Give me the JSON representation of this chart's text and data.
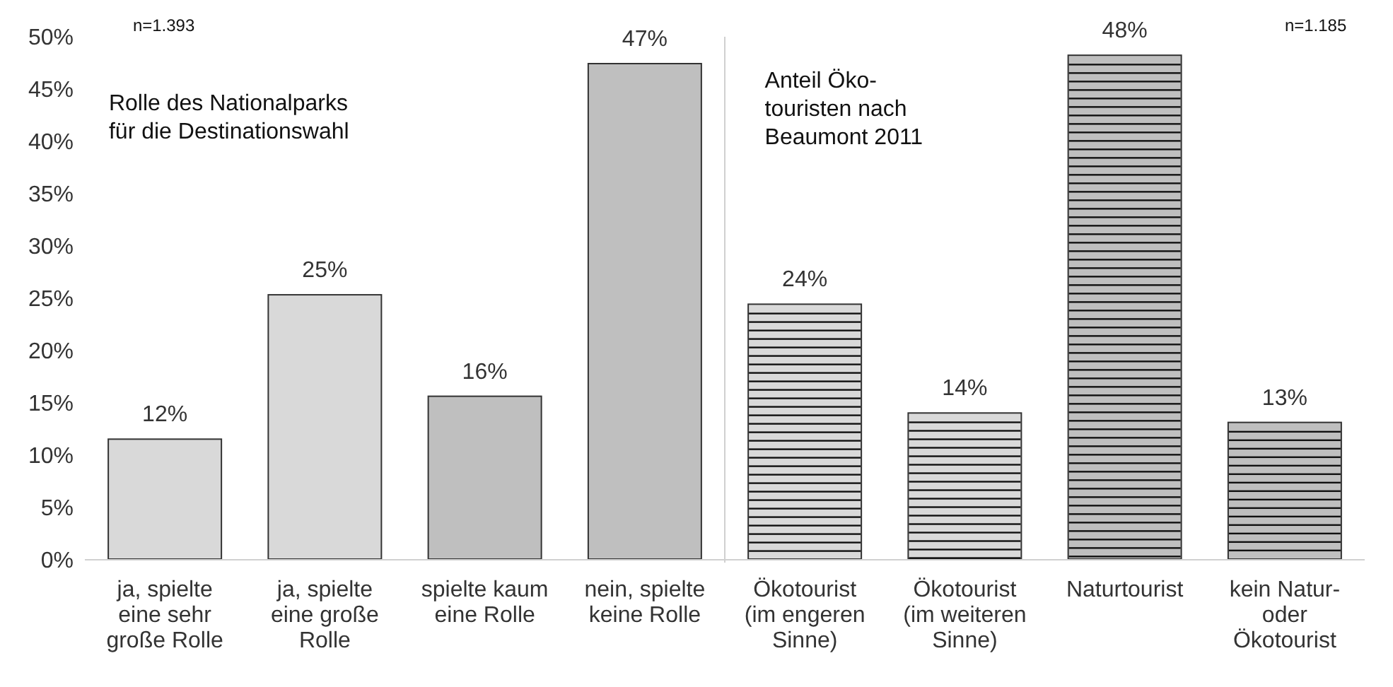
{
  "chart_data": {
    "type": "bar",
    "categories": [
      "ja, spielte\neine sehr\ngroße Rolle",
      "ja, spielte\neine große\nRolle",
      "spielte kaum\neine Rolle",
      "nein, spielte\nkeine Rolle",
      "Ökotourist\n(im engeren\nSinne)",
      "Ökotourist\n(im weiteren\nSinne)",
      "Naturtourist",
      "kein Natur-\noder\nÖkotourist"
    ],
    "series": [
      {
        "values": [
          11.6,
          25.4,
          15.7,
          47.5,
          null,
          null,
          null,
          null
        ],
        "colors": [
          "#d9d9d9",
          "#d9d9d9",
          "#bfbfbf",
          "#bfbfbf",
          "#d9d9d9",
          "#d9d9d9",
          "#bfbfbf",
          "#bfbfbf"
        ],
        "value_labels": [
          "12%",
          "25%",
          "16%",
          "47%",
          null,
          null,
          null,
          null
        ]
      },
      {
        "values": [
          null,
          null,
          null,
          null,
          24.5,
          14.1,
          48.3,
          13.2
        ],
        "colors": [
          "#d9d9d9",
          "#d9d9d9",
          "#bfbfbf",
          "#bfbfbf",
          "#d9d9d9",
          "#d9d9d9",
          "#bfbfbf",
          "#bfbfbf"
        ],
        "value_labels": [
          null,
          null,
          null,
          null,
          "24%",
          "14%",
          "48%",
          "13%"
        ]
      }
    ],
    "ylim": [
      0,
      50
    ],
    "yticks": [
      {
        "value": 0,
        "label": "0%"
      },
      {
        "value": 5,
        "label": "5%"
      },
      {
        "value": 10,
        "label": "10%"
      },
      {
        "value": 15,
        "label": "15%"
      },
      {
        "value": 20,
        "label": "20%"
      },
      {
        "value": 25,
        "label": "25%"
      },
      {
        "value": 30,
        "label": "30%"
      },
      {
        "value": 35,
        "label": "35%"
      },
      {
        "value": 40,
        "label": "40%"
      },
      {
        "value": 45,
        "label": "45%"
      },
      {
        "value": 50,
        "label": "50%"
      }
    ],
    "annotations": [
      "n=1.393",
      "Rolle des Nationalparks\nfür die Destinationswahl",
      "Anteil Öko-\ntouristen nach\nBeaumont 2011",
      "n=1.185"
    ],
    "grid": false,
    "legend": false
  }
}
